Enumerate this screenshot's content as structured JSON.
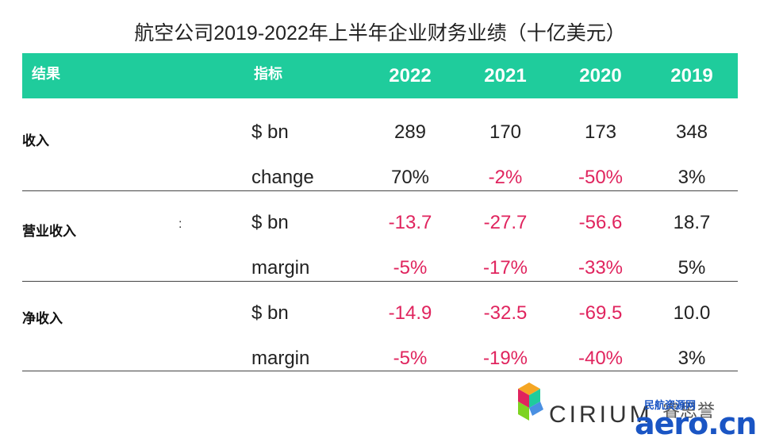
{
  "title": "航空公司2019-2022年上半年企业财务业绩（十亿美元）",
  "header": {
    "col_results": "结果",
    "col_metric": "指标",
    "years": [
      "2022",
      "2021",
      "2020",
      "2019"
    ]
  },
  "groups": [
    {
      "name": "收入",
      "rows": [
        {
          "metric": "$ bn",
          "values": [
            "289",
            "170",
            "173",
            "348"
          ],
          "negative": [
            false,
            false,
            false,
            false
          ]
        },
        {
          "metric": "change",
          "values": [
            "70%",
            "-2%",
            "-50%",
            "3%"
          ],
          "negative": [
            false,
            true,
            true,
            false
          ]
        }
      ]
    },
    {
      "name": "营业收入",
      "marker": ":",
      "rows": [
        {
          "metric": "$ bn",
          "values": [
            "-13.7",
            "-27.7",
            "-56.6",
            "18.7"
          ],
          "negative": [
            true,
            true,
            true,
            false
          ]
        },
        {
          "metric": "margin",
          "values": [
            "-5%",
            "-17%",
            "-33%",
            "5%"
          ],
          "negative": [
            true,
            true,
            true,
            false
          ]
        }
      ]
    },
    {
      "name": "净收入",
      "rows": [
        {
          "metric": "$ bn",
          "values": [
            "-14.9",
            "-32.5",
            "-69.5",
            "10.0"
          ],
          "negative": [
            true,
            true,
            true,
            false
          ]
        },
        {
          "metric": "margin",
          "values": [
            "-5%",
            "-19%",
            "-40%",
            "3%"
          ],
          "negative": [
            true,
            true,
            true,
            false
          ]
        }
      ]
    }
  ],
  "colors": {
    "header_bg": "#1fcc9c",
    "negative": "#e0245e",
    "positive": "#222222"
  },
  "logo": {
    "brand": "CIRIUM",
    "brand_cn": "睿思誉",
    "watermark": "aero.cn",
    "watermark_sub": "民航资源网"
  }
}
